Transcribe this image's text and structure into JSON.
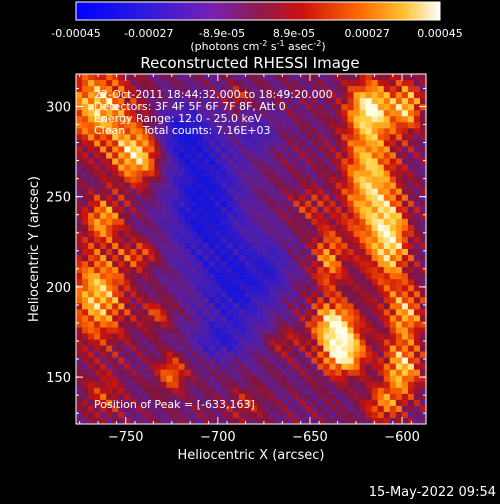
{
  "colorbar": {
    "tick_labels": [
      "-0.00045",
      "-0.00027",
      "-8.9e-05",
      "8.9e-05",
      "0.00027",
      "0.00045"
    ],
    "tick_values": [
      -0.00045,
      -0.00027,
      -8.9e-05,
      8.9e-05,
      0.00027,
      0.00045
    ],
    "unit_label_parts": [
      "(photons cm",
      "-2",
      " s",
      "-1",
      " asec",
      "-2",
      ")"
    ],
    "range": [
      -0.00045,
      0.00045
    ]
  },
  "chart_data": {
    "type": "heatmap",
    "title": "Reconstructed RHESSI Image",
    "xlabel": "Heliocentric X (arcsec)",
    "ylabel": "Heliocentric Y (arcsec)",
    "xlim": [
      -777,
      -587
    ],
    "ylim": [
      124,
      318
    ],
    "x_ticks": [
      -750,
      -700,
      -650,
      -600
    ],
    "x_tick_labels": [
      "−750",
      "−700",
      "−650",
      "−600"
    ],
    "y_ticks": [
      150,
      200,
      250,
      300
    ],
    "y_tick_labels": [
      "150",
      "200",
      "250",
      "300"
    ],
    "peak_position": [
      -633,
      163
    ],
    "annotations": [
      "22-Oct-2011 18:44:32.000 to 18:49:20.000",
      "Detectors: 3F 4F 5F 6F 7F 8F, Att 0",
      "Energy Range: 12.0 - 25.0 keV",
      "Clean     Total counts: 7.16E+03",
      "Position of Peak = [-633,163]"
    ]
  },
  "footer": {
    "date": "15-May-2022 09:54"
  }
}
